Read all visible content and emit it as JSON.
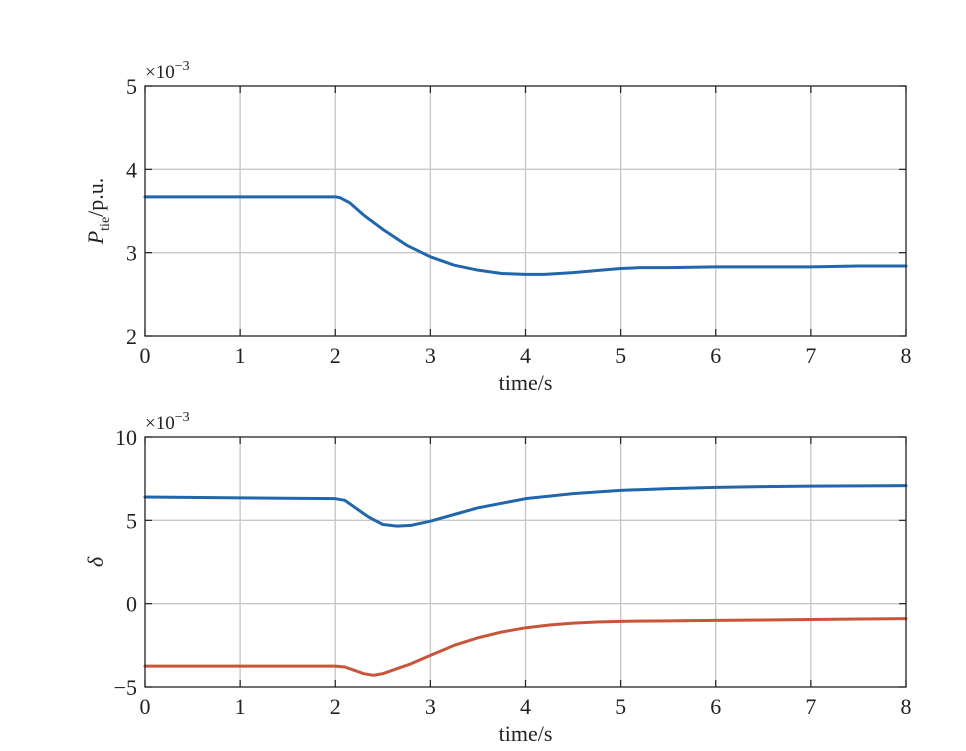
{
  "chart_data": [
    {
      "type": "line",
      "xlabel": "time/s",
      "ylabel_main": "P",
      "ylabel_sub": "tie",
      "ylabel_unit": "/p.u.",
      "exponent_base": "×10",
      "exponent_power": "−3",
      "xlim": [
        0,
        8
      ],
      "ylim": [
        2,
        5
      ],
      "xticks": [
        "0",
        "1",
        "2",
        "3",
        "4",
        "5",
        "6",
        "7",
        "8"
      ],
      "yticks": [
        "2",
        "3",
        "4",
        "5"
      ],
      "grid": true,
      "series": [
        {
          "color": "#2166ac",
          "x": [
            0,
            1,
            2,
            2.05,
            2.15,
            2.3,
            2.5,
            2.75,
            3,
            3.25,
            3.5,
            3.75,
            4,
            4.2,
            4.5,
            4.8,
            5,
            5.2,
            5.5,
            6,
            6.5,
            7,
            7.5,
            8
          ],
          "y": [
            3.67,
            3.67,
            3.67,
            3.66,
            3.6,
            3.45,
            3.28,
            3.09,
            2.95,
            2.85,
            2.79,
            2.75,
            2.74,
            2.74,
            2.76,
            2.79,
            2.81,
            2.82,
            2.82,
            2.83,
            2.83,
            2.83,
            2.84,
            2.84
          ]
        }
      ]
    },
    {
      "type": "line",
      "xlabel": "time/s",
      "ylabel": "δ",
      "exponent_base": "×10",
      "exponent_power": "−3",
      "xlim": [
        0,
        8
      ],
      "ylim": [
        -5,
        10
      ],
      "xticks": [
        "0",
        "1",
        "2",
        "3",
        "4",
        "5",
        "6",
        "7",
        "8"
      ],
      "yticks": [
        "−5",
        "0",
        "5",
        "10"
      ],
      "grid": true,
      "series": [
        {
          "color": "#2166ac",
          "x": [
            0,
            1,
            2,
            2.1,
            2.2,
            2.35,
            2.5,
            2.65,
            2.8,
            3,
            3.25,
            3.5,
            4,
            4.5,
            5,
            5.5,
            6,
            6.5,
            7,
            7.5,
            8
          ],
          "y": [
            6.4,
            6.35,
            6.3,
            6.2,
            5.8,
            5.2,
            4.75,
            4.65,
            4.7,
            4.95,
            5.35,
            5.75,
            6.3,
            6.6,
            6.8,
            6.9,
            6.98,
            7.02,
            7.05,
            7.07,
            7.08
          ]
        },
        {
          "color": "#c8553a",
          "x": [
            0,
            1,
            2,
            2.1,
            2.2,
            2.3,
            2.4,
            2.5,
            2.6,
            2.8,
            3,
            3.25,
            3.5,
            3.75,
            4,
            4.25,
            4.5,
            4.75,
            5,
            5.5,
            6,
            6.5,
            7,
            7.5,
            8
          ],
          "y": [
            -3.75,
            -3.75,
            -3.75,
            -3.8,
            -4.0,
            -4.2,
            -4.3,
            -4.2,
            -4.0,
            -3.6,
            -3.1,
            -2.5,
            -2.05,
            -1.7,
            -1.45,
            -1.28,
            -1.17,
            -1.1,
            -1.06,
            -1.03,
            -1.0,
            -0.98,
            -0.95,
            -0.92,
            -0.9
          ]
        }
      ]
    }
  ]
}
